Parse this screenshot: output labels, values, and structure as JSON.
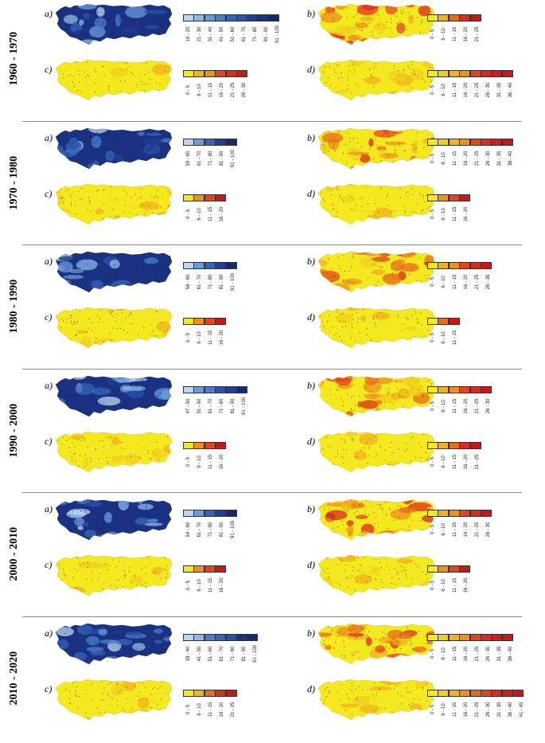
{
  "colors": {
    "yellow": "#f2e01c",
    "orange": "#f29c1c",
    "red": "#e02a1c",
    "blue_dark": "#1e3a8a",
    "blue_mid": "#2f5fc0",
    "blue_light": "#8fb8e8",
    "separator": "#8a8a8a"
  },
  "panel_letters": {
    "a": "a)",
    "b": "b)",
    "c": "c)",
    "d": "d)"
  },
  "decades": [
    {
      "label": "1960 - 1970",
      "a_legend": [
        "19 - 20",
        "21 - 30",
        "31 - 40",
        "41 - 50",
        "51 - 60",
        "61 - 70",
        "71 - 80",
        "81 - 90",
        "91 - 100"
      ],
      "b_legend": [
        "0 - 5",
        "6 - 10",
        "11 - 15",
        "16 - 20",
        "21 - 25"
      ],
      "c_legend": [
        "0 - 5",
        "6 - 10",
        "11 - 15",
        "16 - 20",
        "21 - 25",
        "26 - 30"
      ],
      "d_legend": [
        "0 - 5",
        "6 - 10",
        "11 - 15",
        "16 - 20",
        "21 - 25",
        "26 - 30",
        "31 - 35",
        "36 - 40"
      ]
    },
    {
      "label": "1970 - 1980",
      "a_legend": [
        "59 - 60",
        "61 - 70",
        "71 - 80",
        "81 - 90",
        "91 - 100"
      ],
      "b_legend": [
        "0 - 5",
        "6 - 10",
        "11 - 15",
        "16 - 20",
        "21 - 25",
        "26 - 30",
        "31 - 35",
        "36 - 40"
      ],
      "c_legend": [
        "0 - 5",
        "6 - 10",
        "11 - 15",
        "16 - 20"
      ],
      "d_legend": [
        "0 - 5",
        "6 - 10",
        "11 - 15",
        "16 - 20"
      ]
    },
    {
      "label": "1980 - 1990",
      "a_legend": [
        "58 - 60",
        "61 - 70",
        "71 - 80",
        "81 - 90",
        "91 - 100"
      ],
      "b_legend": [
        "0 - 5",
        "6 - 10",
        "11 - 15",
        "16 - 20",
        "21 - 25",
        "26 - 30"
      ],
      "c_legend": [
        "0 - 5",
        "6 - 10",
        "11 - 15",
        "16 - 20"
      ],
      "d_legend": [
        "0 - 5",
        "6 - 10",
        "11 - 15"
      ]
    },
    {
      "label": "1990 - 2000",
      "a_legend": [
        "47 - 50",
        "51 - 60",
        "61 - 70",
        "71 - 80",
        "81 - 90",
        "91 - 100"
      ],
      "b_legend": [
        "0 - 5",
        "6 - 10",
        "11 - 15",
        "16 - 20",
        "21 - 25",
        "26 - 30"
      ],
      "c_legend": [
        "0 - 5",
        "6 - 10",
        "11 - 15",
        "16 - 20"
      ],
      "d_legend": [
        "0 - 5",
        "6 - 10",
        "11 - 15",
        "16 - 20",
        "21 - 25"
      ]
    },
    {
      "label": "2000 - 2010",
      "a_legend": [
        "54 - 60",
        "61 - 70",
        "71 - 80",
        "81 - 90",
        "91 - 100"
      ],
      "b_legend": [
        "0 - 5",
        "6 - 10",
        "11 - 15",
        "16 - 20",
        "21 - 25",
        "26 - 30"
      ],
      "c_legend": [
        "0 - 5",
        "6 - 10",
        "11 - 15",
        "16 - 20"
      ],
      "d_legend": [
        "0 - 5",
        "6 - 10",
        "11 - 15",
        "16 - 20"
      ]
    },
    {
      "label": "2010 - 2020",
      "a_legend": [
        "33 - 40",
        "41 - 50",
        "51 - 60",
        "61 - 70",
        "71 - 80",
        "81 - 90",
        "91 - 100"
      ],
      "b_legend": [
        "0 - 5",
        "6 - 10",
        "11 - 15",
        "16 - 20",
        "21 - 25",
        "26 - 30",
        "31 - 35",
        "36 - 40"
      ],
      "c_legend": [
        "0 - 5",
        "6 - 10",
        "11 - 15",
        "16 - 20",
        "21 - 25"
      ],
      "d_legend": [
        "0 - 5",
        "6 - 10",
        "11 - 15",
        "16 - 20",
        "21 - 25",
        "26 - 30",
        "31 - 35",
        "36 - 40",
        "41 - 45"
      ]
    }
  ]
}
